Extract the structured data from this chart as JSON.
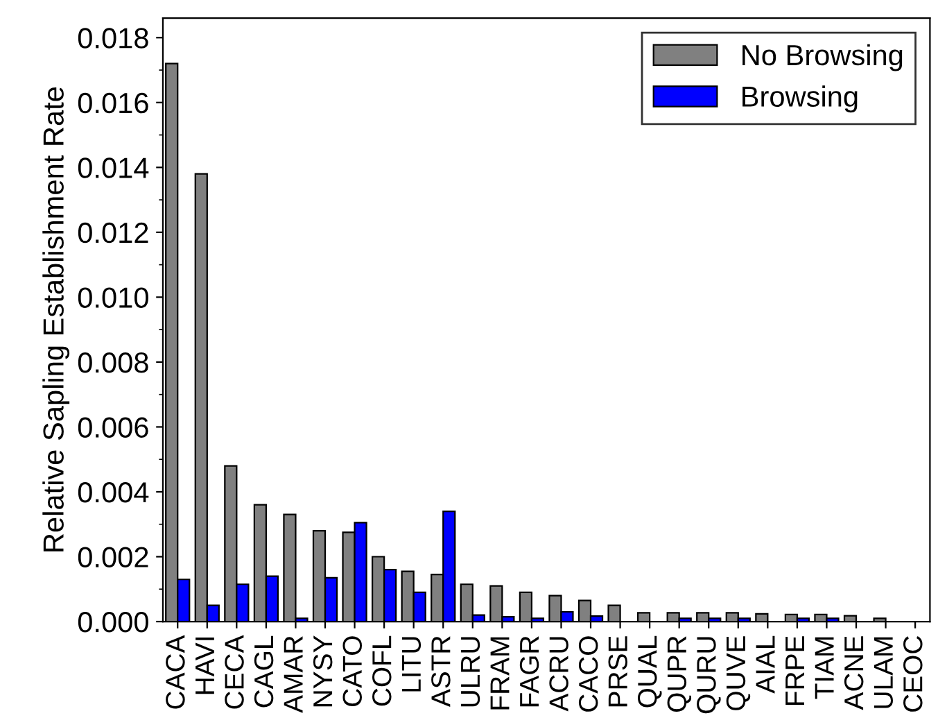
{
  "chart_data": {
    "type": "bar",
    "ylabel": "Relative Sapling Establishment Rate",
    "categories": [
      "CACA",
      "HAVI",
      "CECA",
      "CAGL",
      "AMAR",
      "NYSY",
      "CATO",
      "COFL",
      "LITU",
      "ASTR",
      "ULRU",
      "FRAM",
      "FAGR",
      "ACRU",
      "CACO",
      "PRSE",
      "QUAL",
      "QUPR",
      "QURU",
      "QUVE",
      "AIAL",
      "FRPE",
      "TIAM",
      "ACNE",
      "ULAM",
      "CEOC"
    ],
    "series": [
      {
        "name": "No Browsing",
        "color": "#808080",
        "values": [
          0.0172,
          0.0138,
          0.0048,
          0.0036,
          0.0033,
          0.0028,
          0.00275,
          0.002,
          0.00155,
          0.00145,
          0.00115,
          0.0011,
          0.0009,
          0.0008,
          0.00065,
          0.0005,
          0.00027,
          0.00027,
          0.00027,
          0.00027,
          0.00024,
          0.00022,
          0.00022,
          0.00018,
          0.0001,
          null
        ]
      },
      {
        "name": "Browsing",
        "color": "#0000ff",
        "values": [
          0.0013,
          0.0005,
          0.00115,
          0.0014,
          0.0001,
          0.00135,
          0.00305,
          0.0016,
          0.0009,
          0.0034,
          0.0002,
          0.00015,
          0.0001,
          0.0003,
          0.00017,
          null,
          null,
          0.0001,
          0.0001,
          0.0001,
          null,
          0.0001,
          0.0001,
          null,
          null,
          null
        ]
      }
    ],
    "ylim": [
      0,
      0.0186
    ],
    "yticks": [
      {
        "value": 0,
        "label": "0.000"
      },
      {
        "value": 0.002,
        "label": "0.002"
      },
      {
        "value": 0.004,
        "label": "0.004"
      },
      {
        "value": 0.006,
        "label": "0.006"
      },
      {
        "value": 0.008,
        "label": "0.008"
      },
      {
        "value": 0.01,
        "label": "0.010"
      },
      {
        "value": 0.012,
        "label": "0.012"
      },
      {
        "value": 0.014,
        "label": "0.014"
      },
      {
        "value": 0.016,
        "label": "0.016"
      },
      {
        "value": 0.018,
        "label": "0.018"
      }
    ],
    "legend": "top right",
    "grid": false
  }
}
